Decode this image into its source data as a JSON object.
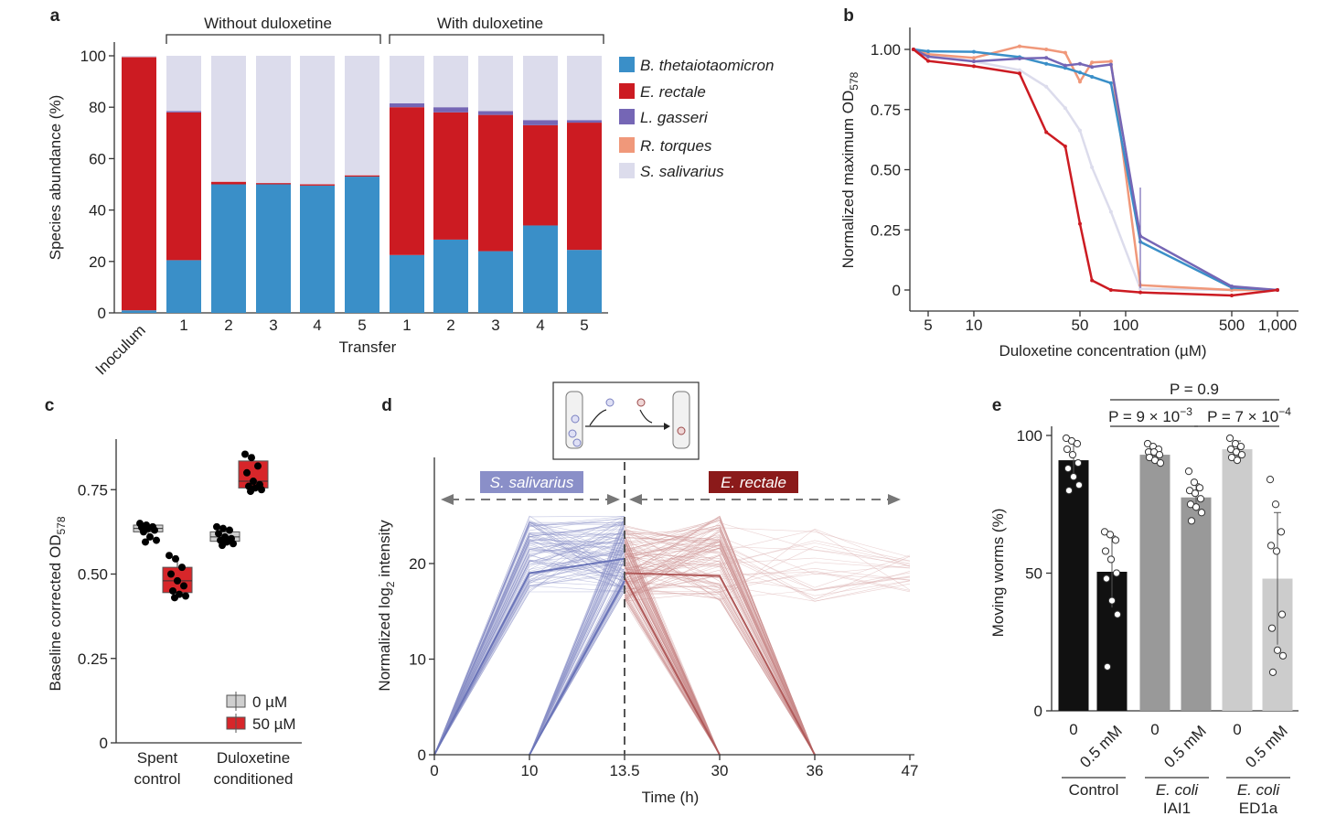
{
  "colors": {
    "b_theta": "#3a8fc8",
    "e_rectale": "#cc1b22",
    "l_gasseri": "#7566b5",
    "r_torques": "#f0987a",
    "s_salivarius": "#dcdcec"
  },
  "chart_data": [
    {
      "panel": "a",
      "type": "bar",
      "stacked": true,
      "groups": [
        {
          "label": "Without duloxetine"
        },
        {
          "label": "With duloxetine"
        }
      ],
      "categories": [
        "Inoculum",
        "1",
        "2",
        "3",
        "4",
        "5",
        "1",
        "2",
        "3",
        "4",
        "5"
      ],
      "xlabel": "Transfer",
      "ylabel": "Species abundance (%)",
      "ylim": [
        0,
        100
      ],
      "yticks": [
        0,
        20,
        40,
        60,
        80,
        100
      ],
      "legend_placement": "right",
      "series": [
        {
          "name": "B. thetaiotaomicron",
          "color": "#3a8fc8",
          "values": [
            1,
            20.5,
            50,
            50,
            49.5,
            53,
            22.5,
            28.5,
            24,
            34,
            24.5
          ]
        },
        {
          "name": "E. rectale",
          "color": "#cc1b22",
          "values": [
            98.5,
            57.5,
            1,
            0.5,
            0.5,
            0.5,
            57.5,
            49.5,
            53,
            39,
            49.5
          ]
        },
        {
          "name": "L. gasseri",
          "color": "#7566b5",
          "values": [
            0,
            0.5,
            0,
            0,
            0,
            0,
            1.5,
            2,
            1.5,
            2,
            1
          ]
        },
        {
          "name": "R. torques",
          "color": "#f0987a",
          "values": [
            0,
            0,
            0,
            0,
            0,
            0,
            0,
            0,
            0,
            0,
            0
          ]
        },
        {
          "name": "S. salivarius",
          "color": "#dcdcec",
          "values": [
            0.5,
            21.5,
            49,
            49.5,
            50,
            46.5,
            18.5,
            20,
            21.5,
            25,
            25
          ]
        }
      ]
    },
    {
      "panel": "b",
      "type": "line",
      "xscale": "log",
      "xlabel": "Duloxetine concentration (µM)",
      "ylabel": "Normalized maximum OD",
      "ylabel_sub": "578",
      "xticks": [
        "5",
        "10",
        "50",
        "100",
        "500",
        "1,000"
      ],
      "xtick_values": [
        5,
        10,
        50,
        100,
        500,
        1000
      ],
      "yticks": [
        "0",
        "0.25",
        "0.50",
        "0.75",
        "1.00"
      ],
      "ytick_values": [
        0,
        0.25,
        0.5,
        0.75,
        1.0
      ],
      "ylim": [
        -0.08,
        1.08
      ],
      "x": [
        4,
        5,
        10,
        20,
        30,
        40,
        50,
        60,
        80,
        125,
        500,
        1000
      ],
      "series": [
        {
          "color": "#dcdcec",
          "values": [
            1,
            0.977,
            0.95,
            0.914,
            0.845,
            0.756,
            0.663,
            0.51,
            0.325,
            0.005,
            0,
            0
          ]
        },
        {
          "color": "#f0987a",
          "values": [
            1,
            0.98,
            0.965,
            1.013,
            1.0,
            0.986,
            0.866,
            0.946,
            0.95,
            0.02,
            0,
            0
          ]
        },
        {
          "color": "#3a8fc8",
          "values": [
            1,
            0.992,
            0.99,
            0.968,
            0.94,
            0.923,
            0.904,
            0.886,
            0.86,
            0.2,
            0.01,
            0
          ]
        },
        {
          "color": "#7566b5",
          "values": [
            1,
            0.97,
            0.95,
            0.962,
            0.965,
            0.933,
            0.94,
            0.927,
            0.937,
            0.224,
            0.015,
            0
          ]
        },
        {
          "color": "#cc1b22",
          "values": [
            1,
            0.952,
            0.93,
            0.9,
            0.656,
            0.597,
            0.275,
            0.04,
            0,
            -0.01,
            -0.023,
            0
          ]
        }
      ]
    },
    {
      "panel": "c",
      "type": "box",
      "ylabel": "Baseline corrected OD",
      "ylabel_sub": "578",
      "yticks": [
        "0",
        "0.25",
        "0.50",
        "0.75"
      ],
      "ytick_values": [
        0,
        0.25,
        0.5,
        0.75
      ],
      "ylim": [
        0,
        0.9
      ],
      "categories": [
        {
          "line1": "Spent",
          "line2": "control"
        },
        {
          "line1": "Duloxetine",
          "line2": "conditioned"
        }
      ],
      "legend": [
        {
          "label": "0 µM",
          "color": "#cfcfcf"
        },
        {
          "label": "50 µM",
          "color": "#d7262a"
        }
      ],
      "boxes": [
        {
          "group": 0,
          "dose": 0,
          "whisker_low": 0.6,
          "q1": 0.625,
          "median": 0.635,
          "q3": 0.645,
          "whisker_high": 0.652,
          "points": [
            0.65,
            0.645,
            0.64,
            0.638,
            0.635,
            0.63,
            0.625,
            0.61,
            0.6,
            0.595
          ]
        },
        {
          "group": 0,
          "dose": 1,
          "whisker_low": 0.43,
          "q1": 0.445,
          "median": 0.48,
          "q3": 0.52,
          "whisker_high": 0.555,
          "points": [
            0.555,
            0.545,
            0.52,
            0.5,
            0.48,
            0.465,
            0.45,
            0.44,
            0.435,
            0.43
          ]
        },
        {
          "group": 1,
          "dose": 0,
          "whisker_low": 0.585,
          "q1": 0.597,
          "median": 0.61,
          "q3": 0.625,
          "whisker_high": 0.64,
          "points": [
            0.64,
            0.635,
            0.63,
            0.62,
            0.61,
            0.605,
            0.6,
            0.595,
            0.59,
            0.585
          ]
        },
        {
          "group": 1,
          "dose": 1,
          "whisker_low": 0.745,
          "q1": 0.755,
          "median": 0.775,
          "q3": 0.835,
          "whisker_high": 0.855,
          "points": [
            0.855,
            0.845,
            0.82,
            0.8,
            0.775,
            0.765,
            0.76,
            0.755,
            0.75,
            0.745
          ]
        }
      ]
    },
    {
      "panel": "d",
      "type": "line",
      "xlabel": "Time (h)",
      "ylabel": "Normalized log",
      "ylabel_sub": "2",
      "ylabel_end": " intensity",
      "xticks": [
        "0",
        "10",
        "13.5",
        "30",
        "36",
        "47"
      ],
      "yticks": [
        "0",
        "10",
        "20"
      ],
      "ytick_values": [
        0,
        10,
        20
      ],
      "ylim": [
        0,
        31
      ],
      "phases": [
        {
          "label": "S. salivarius",
          "color": "#8a8fc8"
        },
        {
          "label": "E. rectale",
          "color": "#8b1a1a"
        }
      ],
      "trace_groups": [
        {
          "color": "#8a8fc8",
          "times": [
            0,
            1,
            2
          ],
          "start": [
            0,
            0
          ],
          "mid": [
            17,
            25
          ],
          "end": [
            17,
            25
          ],
          "n": 90
        },
        {
          "color": "#8a8fc8",
          "times": [
            1,
            2
          ],
          "start": [
            0,
            0
          ],
          "end": [
            17,
            25
          ],
          "n": 60
        },
        {
          "color": "#c98a8a",
          "times": [
            2,
            3
          ],
          "start": [
            16,
            24
          ],
          "end": [
            0,
            0
          ],
          "n": 70
        },
        {
          "color": "#c98a8a",
          "times": [
            2,
            3,
            4
          ],
          "start": [
            16,
            24
          ],
          "mid": [
            16,
            25
          ],
          "end": [
            0,
            0
          ],
          "n": 70
        },
        {
          "color": "#d8a8a8",
          "times": [
            2,
            3,
            4,
            5
          ],
          "start": [
            16,
            24
          ],
          "mid": [
            16,
            25
          ],
          "mid2": [
            16,
            24
          ],
          "end": [
            17,
            21
          ],
          "n": 25
        }
      ],
      "mean_lines": [
        {
          "color": "#6a74b8",
          "points": [
            [
              0,
              0
            ],
            [
              1,
              19
            ],
            [
              2,
              20.5
            ]
          ]
        },
        {
          "color": "#6a74b8",
          "points": [
            [
              1,
              0
            ],
            [
              2,
              18.2
            ]
          ]
        },
        {
          "color": "#b05a5a",
          "points": [
            [
              2,
              19
            ],
            [
              3,
              18.7
            ],
            [
              4,
              0
            ]
          ]
        },
        {
          "color": "#b05a5a",
          "points": [
            [
              2,
              18.5
            ],
            [
              3,
              0
            ]
          ]
        }
      ]
    },
    {
      "panel": "e",
      "type": "bar",
      "ylabel": "Moving worms (%)",
      "yticks": [
        "0",
        "50",
        "100"
      ],
      "ytick_values": [
        0,
        50,
        100
      ],
      "ylim": [
        0,
        100
      ],
      "groups": [
        {
          "line1": "Control",
          "line2": ""
        },
        {
          "line1": "E. coli",
          "line2": "IAI1"
        },
        {
          "line1": "E. coli",
          "line2": "ED1a"
        }
      ],
      "categories": [
        "0",
        "0.5 mM",
        "0",
        "0.5 mM",
        "0",
        "0.5 mM"
      ],
      "values": [
        91,
        50.5,
        93,
        77.5,
        95,
        48
      ],
      "errors": [
        7,
        13,
        2,
        5,
        3,
        24
      ],
      "bar_colors": [
        "#111111",
        "#111111",
        "#999999",
        "#999999",
        "#cccccc",
        "#cccccc"
      ],
      "points": [
        [
          99,
          98,
          97,
          95,
          93,
          90,
          88,
          85,
          82,
          80
        ],
        [
          65,
          64,
          62,
          58,
          55,
          50,
          48,
          40,
          35,
          16
        ],
        [
          97,
          96,
          95,
          94,
          94,
          93,
          92,
          91,
          90
        ],
        [
          87,
          83,
          81,
          80,
          79,
          77,
          75,
          74,
          72,
          69
        ],
        [
          99,
          97,
          96,
          95,
          94,
          93,
          92,
          91
        ],
        [
          84,
          75,
          65,
          60,
          58,
          35,
          30,
          22,
          20,
          14
        ]
      ],
      "annotations": [
        {
          "text": "P = 0.9",
          "from": 1,
          "to": 5
        },
        {
          "text": "P = 9 × 10",
          "exp": "−3",
          "from": 1,
          "to": 3
        },
        {
          "text": "P = 7 × 10",
          "exp": "−4",
          "from": 3,
          "to": 5
        }
      ]
    }
  ],
  "panel_labels": [
    "a",
    "b",
    "c",
    "d",
    "e"
  ]
}
